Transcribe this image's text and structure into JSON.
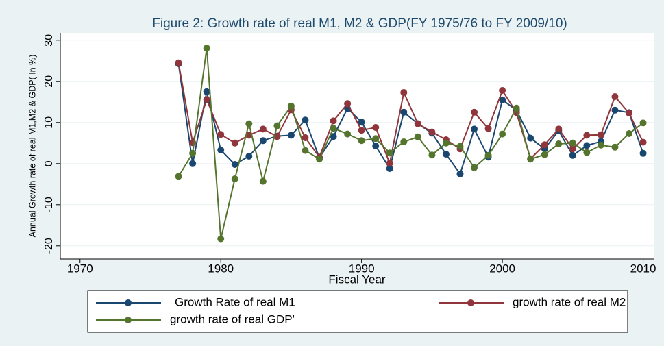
{
  "chart_data": {
    "type": "line",
    "title": "Figure 2: Growth rate of real M1, M2 & GDP(FY 1975/76 to FY 2009/10)",
    "x_label": "Fiscal Year",
    "y_label": "Annual Growth rate of real M1,M2 & GDP( In %)",
    "x": [
      1977,
      1978,
      1979,
      1980,
      1981,
      1982,
      1983,
      1984,
      1985,
      1986,
      1987,
      1988,
      1989,
      1990,
      1991,
      1992,
      1993,
      1994,
      1995,
      1996,
      1997,
      1998,
      1999,
      2000,
      2001,
      2002,
      2003,
      2004,
      2005,
      2006,
      2007,
      2008,
      2009,
      2010
    ],
    "series": [
      {
        "name": "Growth Rate of real M1",
        "color": "#1a476f",
        "values": [
          24.3,
          0,
          17.5,
          3.3,
          -0.2,
          1.8,
          5.6,
          6.7,
          6.9,
          10.6,
          1.4,
          6.6,
          13.4,
          10.1,
          4.3,
          -1.2,
          12.5,
          9.7,
          7.4,
          2.3,
          -2.5,
          8.4,
          1.6,
          15.5,
          13.0,
          6.2,
          3.6,
          8.0,
          2.0,
          4.4,
          5.4,
          13.0,
          12.4,
          2.5
        ]
      },
      {
        "name": "growth rate of real M2",
        "color": "#90353b",
        "values": [
          24.5,
          5.1,
          15.6,
          7.1,
          5.0,
          6.9,
          8.4,
          6.6,
          13.1,
          6.3,
          1.6,
          10.4,
          14.6,
          8.1,
          8.8,
          0.1,
          17.3,
          9.7,
          7.7,
          5.8,
          3.6,
          12.5,
          8.5,
          17.8,
          12.4,
          1.2,
          4.6,
          8.4,
          3.6,
          6.9,
          7.0,
          16.3,
          12.3,
          5.2
        ]
      },
      {
        "name": "growth rate of real GDP'",
        "color": "#55752f",
        "values": [
          -3.1,
          2.5,
          28.1,
          -18.3,
          -3.7,
          9.7,
          -4.3,
          9.2,
          14.0,
          3.2,
          1.1,
          8.6,
          7.2,
          5.6,
          6.1,
          2.6,
          5.3,
          6.5,
          2.1,
          5.0,
          4.2,
          -1.0,
          2.0,
          7.2,
          13.5,
          1.1,
          2.2,
          4.8,
          5.0,
          2.7,
          4.5,
          4.0,
          7.3,
          9.9
        ]
      }
    ],
    "xlim": [
      1968.6,
      2010.8
    ],
    "xticks": [
      1970,
      1980,
      1990,
      2000,
      2010
    ],
    "ylim": [
      -23.2,
      31.8
    ],
    "yticks": [
      -20,
      -10,
      0,
      10,
      20,
      30
    ],
    "grid": true
  }
}
